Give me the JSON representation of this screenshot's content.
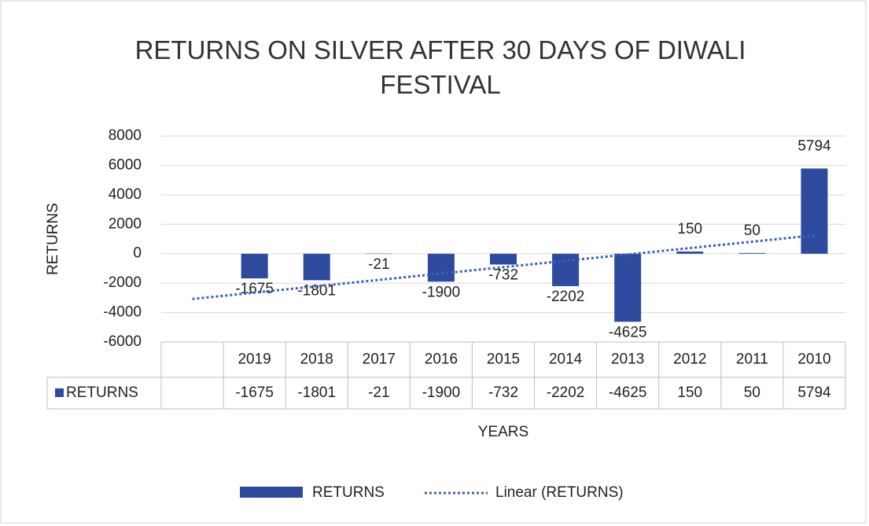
{
  "chart_data": {
    "type": "bar",
    "title": "RETURNS ON SILVER AFTER 30 DAYS OF DIWALI FESTIVAL",
    "y_label": "RETURNS",
    "x_label": "YEARS",
    "categories": [
      null,
      "2019",
      "2018",
      "2017",
      "2016",
      "2015",
      "2014",
      "2013",
      "2012",
      "2011",
      "2010"
    ],
    "series": [
      {
        "name": "RETURNS",
        "color": "#2e4a9e",
        "values": [
          null,
          -1675,
          -1801,
          -21,
          -1900,
          -732,
          -2202,
          -4625,
          150,
          50,
          5794
        ]
      }
    ],
    "trendline": {
      "label": "Linear (RETURNS)",
      "type": "linear",
      "color": "#3a5fc0"
    },
    "ylim": [
      -6000,
      8000
    ],
    "yticks": [
      -6000,
      -4000,
      -2000,
      0,
      2000,
      4000,
      6000,
      8000
    ],
    "grid": true,
    "legend": "bottom",
    "data_table": true
  }
}
